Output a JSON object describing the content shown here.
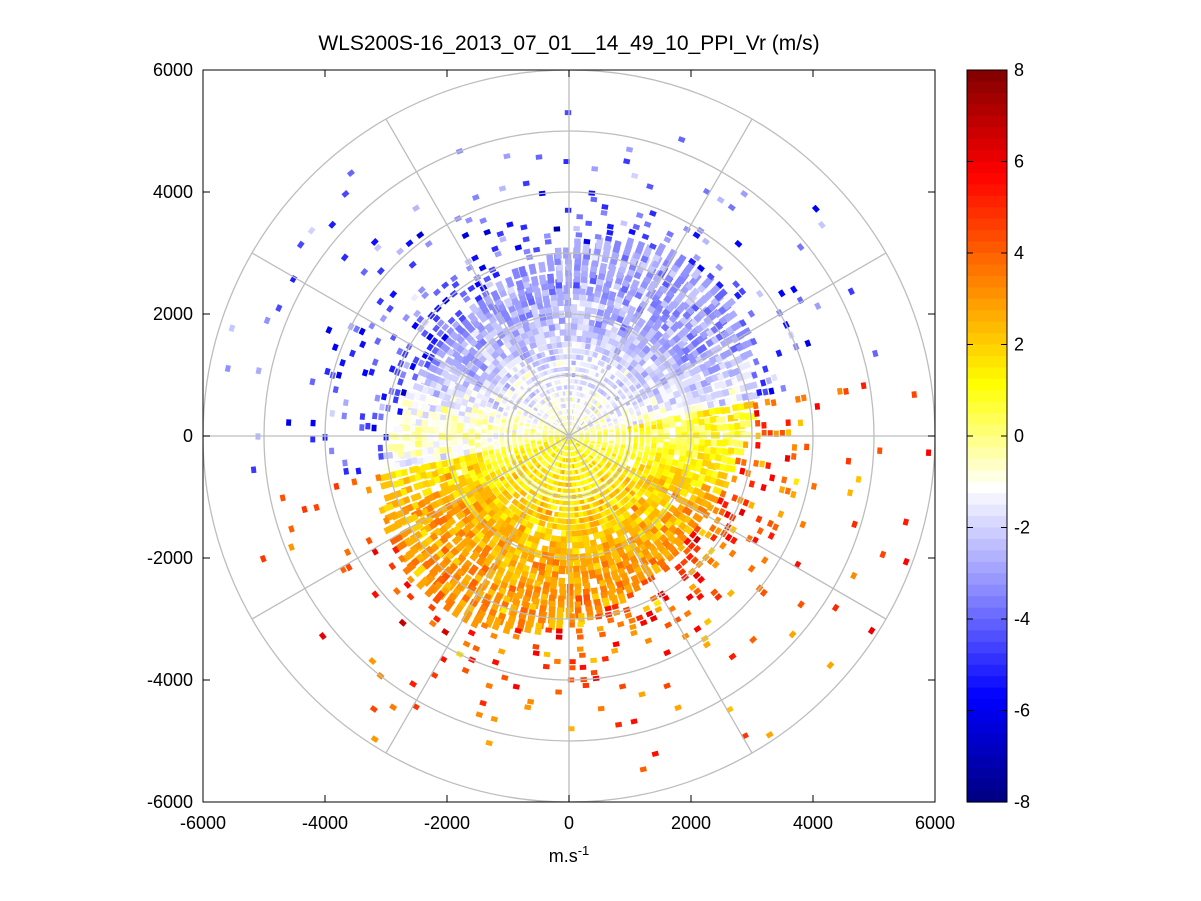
{
  "chart_data": {
    "type": "heatmap",
    "subtype": "polar-ppi-scan",
    "title": "WLS200S-16_2013_07_01__14_49_10_PPI_Vr (m/s)",
    "xlabel_base": "m.s",
    "xlabel_exponent": "-1",
    "ylabel": "",
    "xlim": [
      -6000,
      6000
    ],
    "ylim": [
      -6000,
      6000
    ],
    "x_ticks": [
      "-6000",
      "-4000",
      "-2000",
      "0",
      "2000",
      "4000",
      "6000"
    ],
    "y_ticks": [
      "6000",
      "4000",
      "2000",
      "0",
      "-2000",
      "-4000",
      "-6000"
    ],
    "polar_grid": {
      "ring_radii": [
        1000,
        2000,
        3000,
        4000,
        5000,
        6000
      ],
      "spoke_angles_deg": [
        0,
        30,
        60,
        90,
        120,
        150,
        180,
        210,
        240,
        270,
        300,
        330
      ]
    },
    "colorbar": {
      "range": [
        -8,
        8
      ],
      "tick_labels": [
        "8",
        "6",
        "4",
        "2",
        "0",
        "-2",
        "-4",
        "-6",
        "-8"
      ],
      "colormap": "blue-white-yellow-red",
      "stops": [
        "#000080",
        "#0000ff",
        "#8888ff",
        "#ffffff",
        "#ffff00",
        "#ff8000",
        "#ff0000",
        "#800000"
      ]
    },
    "field_description": {
      "approaching_sector_deg": [
        10,
        190
      ],
      "approaching_mean_vr": -3.0,
      "receding_sector_deg": [
        190,
        360
      ],
      "receding_mean_vr": 3.0,
      "max_dense_range_m": 3000,
      "max_sparse_range_m": 6000
    }
  }
}
